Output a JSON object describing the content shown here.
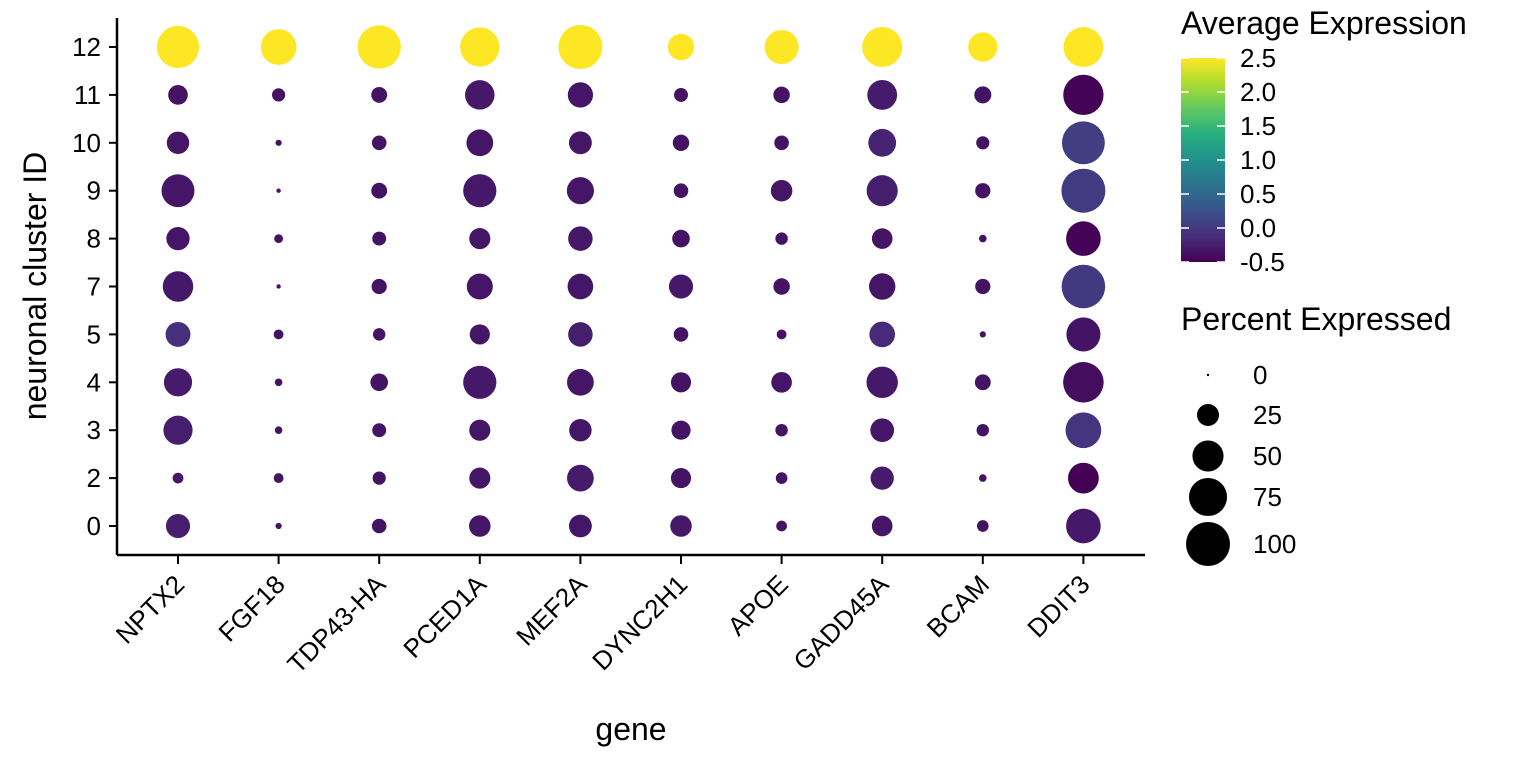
{
  "chart_data": {
    "type": "dotplot",
    "xlabel": "gene",
    "ylabel": "neuronal cluster ID",
    "genes": [
      "NPTX2",
      "FGF18",
      "TDP43-HA",
      "PCED1A",
      "MEF2A",
      "DYNC2H1",
      "APOE",
      "GADD45A",
      "BCAM",
      "DDIT3"
    ],
    "clusters": [
      "0",
      "2",
      "3",
      "4",
      "5",
      "7",
      "8",
      "9",
      "10",
      "11",
      "12"
    ],
    "percent_expressed": {
      "12": [
        92,
        66,
        97,
        80,
        100,
        36,
        60,
        83,
        44,
        82
      ],
      "11": [
        20,
        9,
        13,
        45,
        33,
        10,
        14,
        46,
        15,
        84
      ],
      "10": [
        26,
        2,
        11,
        37,
        27,
        14,
        11,
        40,
        9,
        95
      ],
      "9": [
        56,
        1,
        13,
        57,
        38,
        11,
        24,
        50,
        12,
        100
      ],
      "8": [
        28,
        4,
        10,
        23,
        31,
        16,
        8,
        22,
        3,
        62
      ],
      "7": [
        48,
        1,
        12,
        35,
        34,
        30,
        14,
        36,
        12,
        98
      ],
      "5": [
        32,
        5,
        8,
        21,
        31,
        11,
        5,
        34,
        2,
        60
      ],
      "4": [
        41,
        3,
        16,
        57,
        37,
        21,
        22,
        51,
        13,
        85
      ],
      "3": [
        44,
        3,
        10,
        23,
        26,
        19,
        8,
        29,
        8,
        66
      ],
      "2": [
        6,
        5,
        9,
        23,
        37,
        21,
        7,
        28,
        3,
        49
      ],
      "0": [
        30,
        2,
        11,
        24,
        27,
        24,
        6,
        22,
        7,
        62
      ]
    },
    "average_expression": {
      "12": [
        2.5,
        2.5,
        2.5,
        2.5,
        2.5,
        2.5,
        2.5,
        2.5,
        2.5,
        2.5
      ],
      "11": [
        -0.35,
        -0.35,
        -0.35,
        -0.3,
        -0.32,
        -0.35,
        -0.35,
        -0.28,
        -0.35,
        -0.48
      ],
      "10": [
        -0.33,
        -0.35,
        -0.35,
        -0.32,
        -0.33,
        -0.35,
        -0.35,
        -0.2,
        -0.35,
        0.05
      ],
      "9": [
        -0.32,
        -0.35,
        -0.35,
        -0.3,
        -0.32,
        -0.35,
        -0.33,
        -0.25,
        -0.35,
        0.02
      ],
      "8": [
        -0.32,
        -0.35,
        -0.35,
        -0.33,
        -0.3,
        -0.35,
        -0.35,
        -0.34,
        -0.35,
        -0.48
      ],
      "7": [
        -0.3,
        -0.35,
        -0.35,
        -0.32,
        -0.32,
        -0.3,
        -0.35,
        -0.32,
        -0.35,
        0.0
      ],
      "5": [
        -0.1,
        -0.35,
        -0.35,
        -0.33,
        -0.25,
        -0.35,
        -0.35,
        -0.15,
        -0.35,
        -0.35
      ],
      "4": [
        -0.28,
        -0.35,
        -0.35,
        -0.3,
        -0.33,
        -0.35,
        -0.32,
        -0.3,
        -0.35,
        -0.4
      ],
      "3": [
        -0.25,
        -0.35,
        -0.35,
        -0.33,
        -0.32,
        -0.35,
        -0.35,
        -0.32,
        -0.35,
        -0.05
      ],
      "2": [
        -0.3,
        -0.35,
        -0.35,
        -0.33,
        -0.28,
        -0.35,
        -0.35,
        -0.28,
        -0.35,
        -0.5
      ],
      "0": [
        -0.25,
        -0.35,
        -0.35,
        -0.32,
        -0.32,
        -0.3,
        -0.35,
        -0.32,
        -0.35,
        -0.3
      ]
    },
    "color_legend": {
      "title": "Average Expression",
      "ticks": [
        "2.5",
        "2.0",
        "1.5",
        "1.0",
        "0.5",
        "0.0",
        "-0.5"
      ],
      "range": [
        -0.5,
        2.5
      ],
      "palette": "viridis"
    },
    "size_legend": {
      "title": "Percent Expressed",
      "ticks": [
        "0",
        "25",
        "50",
        "75",
        "100"
      ]
    }
  }
}
